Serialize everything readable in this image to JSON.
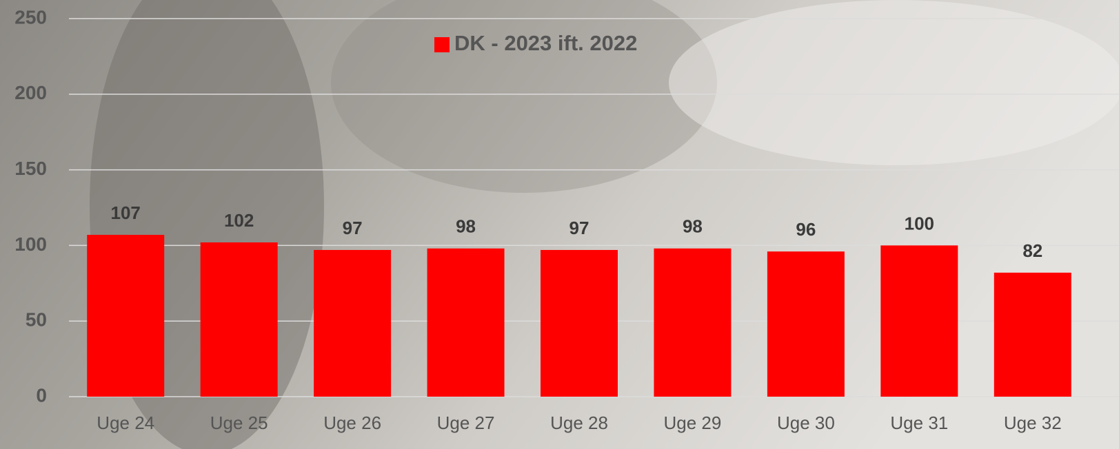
{
  "chart_data": {
    "type": "bar",
    "categories": [
      "Uge 24",
      "Uge 25",
      "Uge 26",
      "Uge 27",
      "Uge 28",
      "Uge 29",
      "Uge 30",
      "Uge 31",
      "Uge 32"
    ],
    "series": [
      {
        "name": "DK - 2023 ift. 2022",
        "color": "#ff0000",
        "values": [
          107,
          102,
          97,
          98,
          97,
          98,
          96,
          100,
          82
        ]
      }
    ],
    "ylim": [
      0,
      250
    ],
    "yticks": [
      0,
      50,
      100,
      150,
      200,
      250
    ],
    "grid": true,
    "legend": "top"
  }
}
